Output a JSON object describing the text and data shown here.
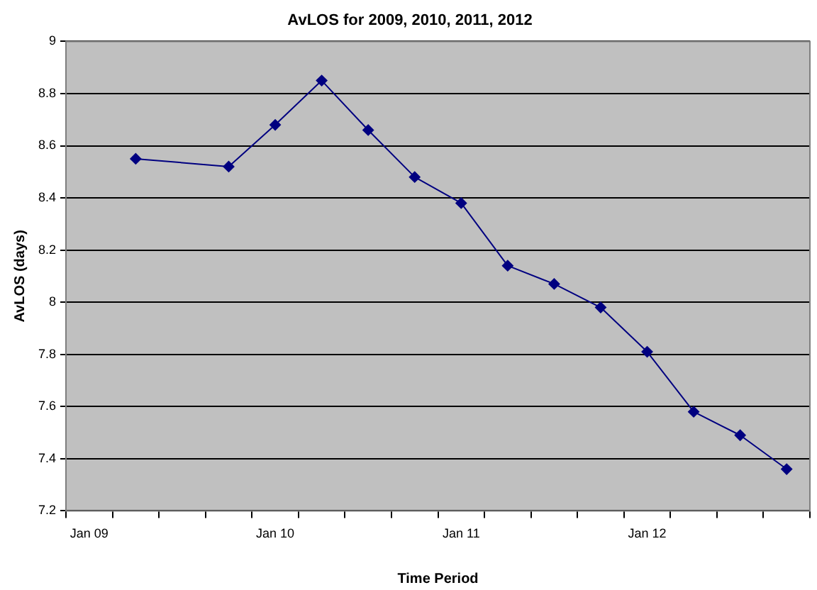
{
  "chart_data": {
    "type": "line",
    "title": "AvLOS for 2009, 2010, 2011, 2012",
    "xlabel": "Time Period",
    "ylabel": "AvLOS (days)",
    "categories": [
      "Jan 09",
      null,
      null,
      null,
      "Jan 10",
      null,
      null,
      null,
      "Jan 11",
      null,
      null,
      null,
      "Jan 12",
      null,
      null,
      null
    ],
    "series": [
      {
        "color": "#000080",
        "values": [
          null,
          8.55,
          null,
          8.52,
          8.68,
          8.85,
          8.66,
          8.48,
          8.38,
          8.14,
          8.07,
          7.98,
          7.81,
          7.58,
          7.49,
          7.36
        ]
      }
    ],
    "ylim": [
      7.2,
      9
    ],
    "yticks": [
      7.2,
      7.4,
      7.6,
      7.8,
      8,
      8.2,
      8.4,
      8.6,
      8.8,
      9
    ],
    "grid": "y",
    "legend": false,
    "marker": "diamond",
    "line_style": "solid"
  }
}
